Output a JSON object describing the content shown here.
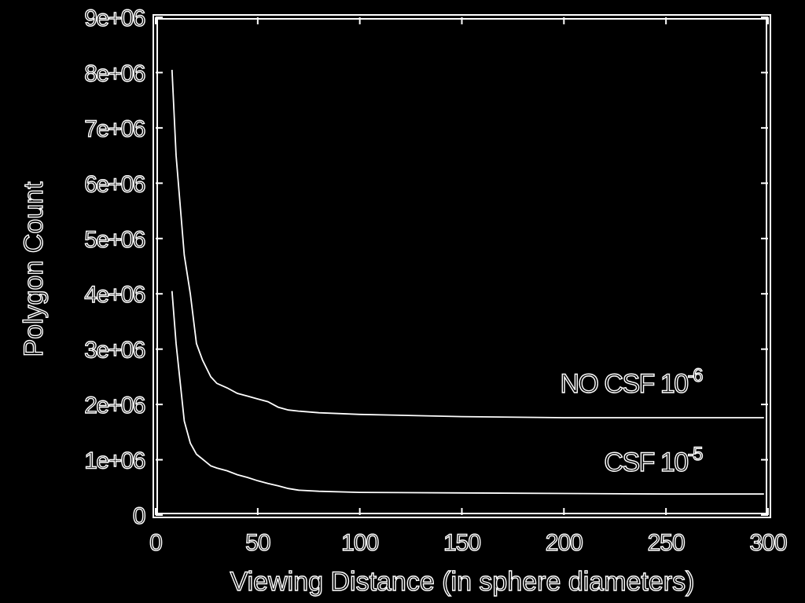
{
  "chart_data": {
    "type": "line",
    "title": "",
    "xlabel": "Viewing Distance (in sphere diameters)",
    "ylabel": "Polygon Count",
    "xlim": [
      0,
      300
    ],
    "ylim": [
      0,
      9000000
    ],
    "x_ticks": [
      "0",
      "50",
      "100",
      "150",
      "200",
      "250",
      "300"
    ],
    "y_ticks": [
      "0",
      "1e+06",
      "2e+06",
      "3e+06",
      "4e+06",
      "5e+06",
      "6e+06",
      "7e+06",
      "8e+06",
      "9e+06"
    ],
    "grid": false,
    "series": [
      {
        "name": "NO CSF 10^-6",
        "label_text": "NO CSF 10",
        "label_exp": "-6",
        "x": [
          8,
          10,
          14,
          17,
          20,
          23,
          27,
          30,
          35,
          40,
          45,
          50,
          55,
          60,
          65,
          70,
          80,
          100,
          150,
          200,
          250,
          298
        ],
        "values": [
          8050000,
          6500000,
          4700000,
          4000000,
          3100000,
          2800000,
          2500000,
          2380000,
          2300000,
          2200000,
          2150000,
          2100000,
          2050000,
          1950000,
          1900000,
          1880000,
          1850000,
          1820000,
          1780000,
          1760000,
          1760000,
          1760000
        ]
      },
      {
        "name": "CSF 10^-5",
        "label_text": "CSF 10",
        "label_exp": "-5",
        "x": [
          8,
          10,
          14,
          17,
          20,
          25,
          27,
          30,
          35,
          40,
          45,
          50,
          55,
          60,
          65,
          70,
          80,
          100,
          150,
          200,
          250,
          298
        ],
        "values": [
          4050000,
          3100000,
          1700000,
          1300000,
          1100000,
          950000,
          890000,
          850000,
          800000,
          730000,
          680000,
          620000,
          570000,
          530000,
          480000,
          450000,
          430000,
          410000,
          400000,
          390000,
          380000,
          380000
        ]
      }
    ]
  }
}
